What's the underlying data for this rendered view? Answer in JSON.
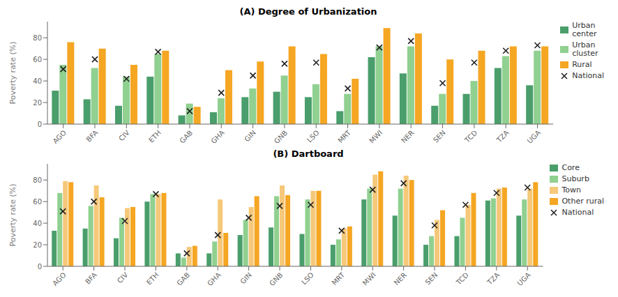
{
  "chart_data": [
    {
      "type": "bar",
      "title": "(A) Degree of Urbanization",
      "categories": [
        "AGO",
        "BFA",
        "CIV",
        "ETH",
        "GAB",
        "GHA",
        "GIN",
        "GNB",
        "LSO",
        "MRT",
        "MWI",
        "NER",
        "SEN",
        "TCD",
        "TZA",
        "UGA"
      ],
      "series": [
        {
          "name": "Urban\ncenter",
          "color": "#4a9e6b",
          "values": [
            31,
            23,
            17,
            44,
            8,
            11,
            25,
            30,
            25,
            12,
            62,
            47,
            17,
            28,
            52,
            36
          ]
        },
        {
          "name": "Urban\ncluster",
          "color": "#90d090",
          "values": [
            55,
            52,
            44,
            65,
            19,
            24,
            33,
            45,
            37,
            28,
            72,
            72,
            28,
            40,
            63,
            68
          ]
        },
        {
          "name": "Rural",
          "color": "#f5a623",
          "values": [
            76,
            70,
            55,
            68,
            16,
            50,
            58,
            72,
            65,
            42,
            89,
            84,
            60,
            68,
            72,
            72
          ]
        },
        {
          "name": "National",
          "type": "scatter",
          "marker": "x",
          "color": "#222222",
          "values": [
            51,
            60,
            42,
            67,
            12,
            29,
            45,
            56,
            57,
            33,
            71,
            77,
            38,
            57,
            68,
            73
          ]
        }
      ],
      "ylabel": "Poverty rate (%)",
      "ylim": [
        0,
        95
      ],
      "yticks": [
        0,
        20,
        40,
        60,
        80
      ],
      "legend": "upper right",
      "grid": false
    },
    {
      "type": "bar",
      "title": "(B) Dartboard",
      "categories": [
        "AGO",
        "BFA",
        "CIV",
        "ETH",
        "GAB",
        "GHA",
        "GIN",
        "GNB",
        "LSO",
        "MRT",
        "MWI",
        "NER",
        "SEN",
        "TCD",
        "TZA",
        "UGA"
      ],
      "series": [
        {
          "name": "Core",
          "color": "#4a9e6b",
          "values": [
            33,
            35,
            26,
            60,
            12,
            12,
            29,
            36,
            30,
            20,
            62,
            47,
            20,
            28,
            61,
            47
          ]
        },
        {
          "name": "Suburb",
          "color": "#90d090",
          "values": [
            68,
            56,
            45,
            67,
            8,
            23,
            43,
            65,
            62,
            25,
            72,
            72,
            28,
            45,
            63,
            62
          ]
        },
        {
          "name": "Town",
          "color": "#f5c87a",
          "values": [
            79,
            75,
            54,
            67,
            18,
            62,
            55,
            75,
            70,
            35,
            85,
            84,
            43,
            57,
            72,
            72
          ]
        },
        {
          "name": "Other rural",
          "color": "#f5a623",
          "values": [
            78,
            64,
            55,
            68,
            19,
            31,
            65,
            66,
            70,
            37,
            88,
            80,
            52,
            68,
            73,
            78
          ]
        },
        {
          "name": "National",
          "type": "scatter",
          "marker": "x",
          "color": "#222222",
          "values": [
            51,
            60,
            42,
            67,
            12,
            29,
            45,
            56,
            57,
            33,
            71,
            77,
            38,
            57,
            68,
            73
          ]
        }
      ],
      "ylabel": "Poverty rate (%)",
      "ylim": [
        0,
        95
      ],
      "yticks": [
        0,
        20,
        40,
        60,
        80
      ],
      "legend": "upper right",
      "grid": false
    }
  ]
}
